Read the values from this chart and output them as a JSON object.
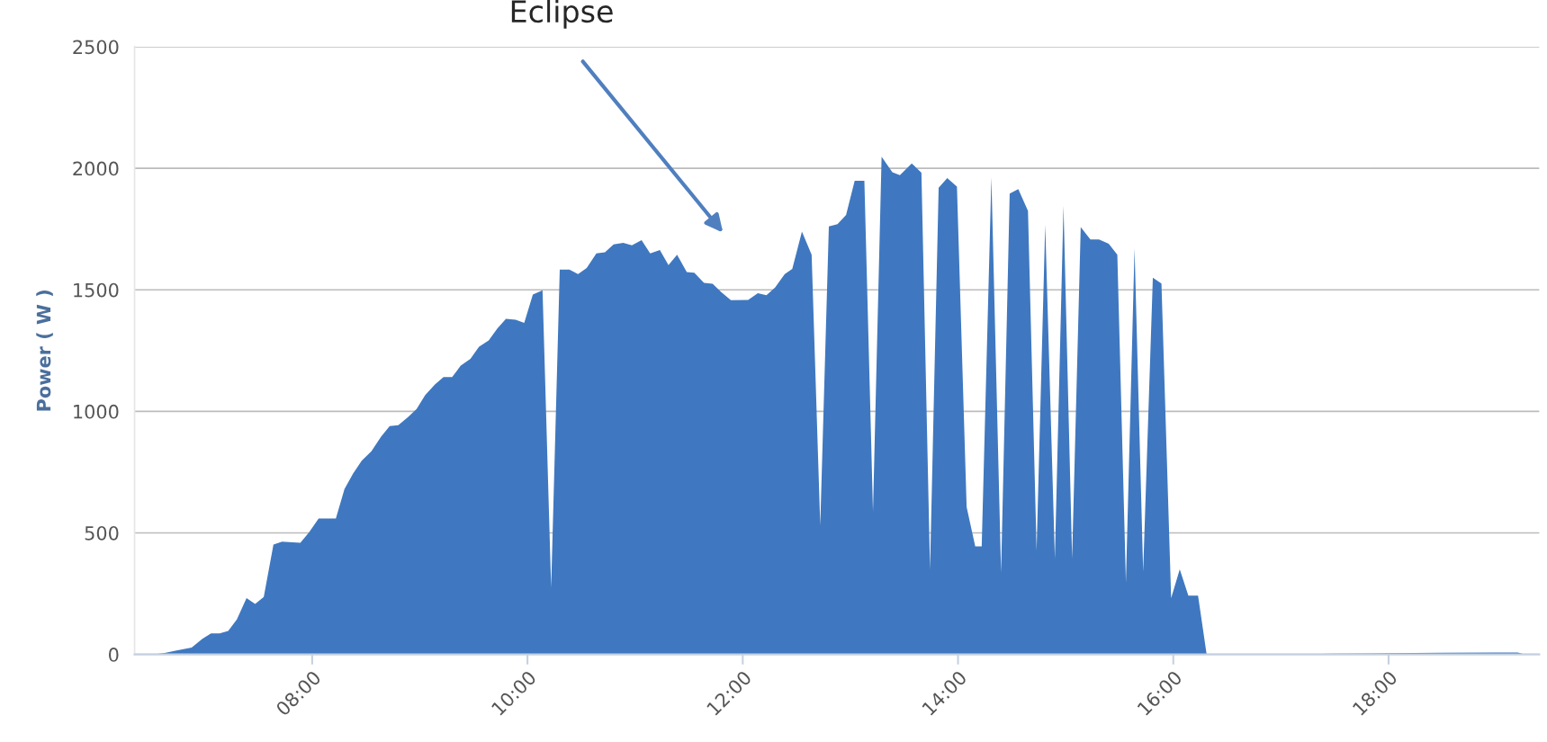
{
  "chart_data": {
    "type": "area",
    "ylabel": "Power ( W )",
    "annotations": [
      "Eclipse"
    ],
    "x": [
      6.52,
      6.64,
      6.74,
      6.88,
      6.98,
      7.06,
      7.14,
      7.22,
      7.3,
      7.39,
      7.47,
      7.55,
      7.64,
      7.72,
      7.89,
      7.97,
      8.06,
      8.22,
      8.3,
      8.38,
      8.46,
      8.55,
      8.64,
      8.72,
      8.8,
      8.89,
      8.97,
      9.05,
      9.14,
      9.22,
      9.3,
      9.38,
      9.47,
      9.55,
      9.64,
      9.72,
      9.8,
      9.89,
      9.97,
      10.05,
      10.14,
      10.22,
      10.3,
      10.39,
      10.47,
      10.55,
      10.64,
      10.72,
      10.8,
      10.89,
      10.97,
      11.06,
      11.14,
      11.23,
      11.31,
      11.39,
      11.48,
      11.55,
      11.64,
      11.72,
      11.8,
      11.89,
      12.05,
      12.14,
      12.22,
      12.3,
      12.39,
      12.46,
      12.55,
      12.64,
      12.72,
      12.8,
      12.88,
      12.96,
      13.04,
      13.13,
      13.21,
      13.29,
      13.39,
      13.46,
      13.57,
      13.66,
      13.74,
      13.82,
      13.9,
      13.99,
      14.08,
      14.16,
      14.22,
      14.31,
      14.4,
      14.48,
      14.56,
      14.65,
      14.73,
      14.81,
      14.9,
      14.98,
      15.06,
      15.14,
      15.23,
      15.31,
      15.4,
      15.48,
      15.56,
      15.64,
      15.72,
      15.81,
      15.89,
      15.98,
      16.06,
      16.14,
      16.23,
      16.31,
      17.0,
      17.5,
      18.0,
      18.5,
      19.0,
      19.2,
      19.27
    ],
    "series": [
      {
        "color": "#3f78c0",
        "values": [
          0,
          7,
          16,
          28,
          64,
          87,
          87,
          97,
          144,
          232,
          208,
          236,
          452,
          464,
          459,
          502,
          559,
          559,
          680,
          744,
          797,
          836,
          896,
          939,
          943,
          976,
          1010,
          1067,
          1111,
          1141,
          1141,
          1188,
          1216,
          1266,
          1292,
          1341,
          1381,
          1377,
          1364,
          1481,
          1498,
          275,
          1583,
          1583,
          1565,
          1590,
          1650,
          1654,
          1687,
          1693,
          1683,
          1704,
          1650,
          1664,
          1602,
          1644,
          1573,
          1570,
          1529,
          1525,
          1491,
          1457,
          1458,
          1486,
          1478,
          1509,
          1565,
          1586,
          1740,
          1644,
          531,
          1761,
          1770,
          1808,
          1949,
          1949,
          587,
          2048,
          1984,
          1972,
          2020,
          1982,
          350,
          1920,
          1960,
          1925,
          606,
          445,
          445,
          1963,
          336,
          1896,
          1914,
          1825,
          428,
          1768,
          395,
          1846,
          395,
          1758,
          1707,
          1707,
          1690,
          1644,
          296,
          1671,
          341,
          1550,
          1526,
          232,
          350,
          242,
          242,
          0,
          0,
          3,
          5,
          7,
          8,
          8,
          0
        ]
      }
    ],
    "xlim": [
      6.35,
      19.4
    ],
    "xticks": [
      {
        "value": 8,
        "label": "08:00"
      },
      {
        "value": 10,
        "label": "10:00"
      },
      {
        "value": 12,
        "label": "12:00"
      },
      {
        "value": 14,
        "label": "14:00"
      },
      {
        "value": 16,
        "label": "16:00"
      },
      {
        "value": 18,
        "label": "18:00"
      }
    ],
    "ylim": [
      0,
      2500
    ],
    "yticks": [
      0,
      500,
      1000,
      1500,
      2000,
      2500
    ],
    "grid": "y"
  }
}
